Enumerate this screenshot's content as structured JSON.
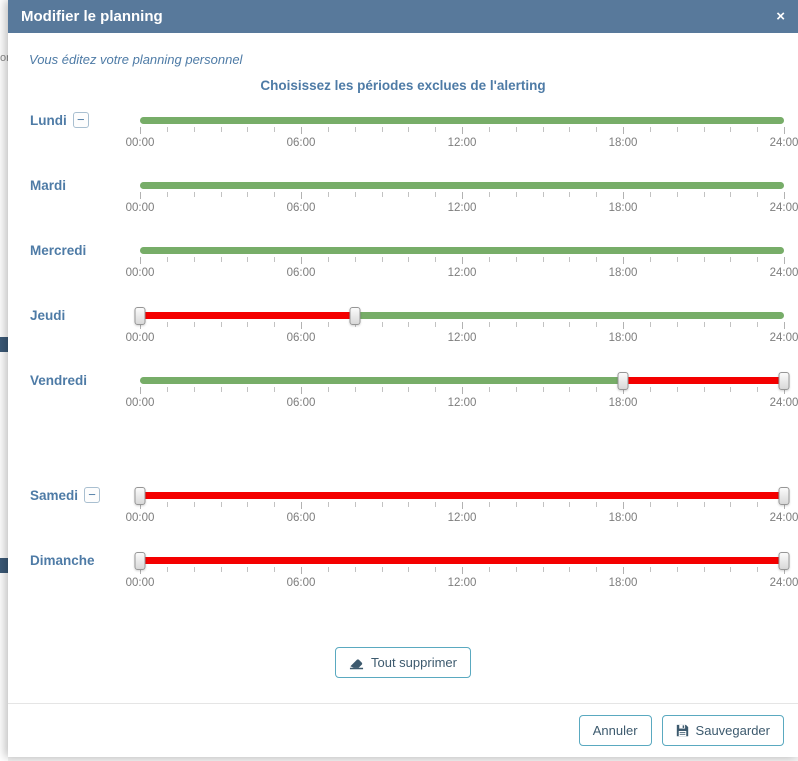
{
  "background": {
    "fragment_text": "or"
  },
  "modal": {
    "title": "Modifier le planning",
    "close": "×",
    "subtitle": "Vous éditez votre planning personnel",
    "heading": "Choisissez les périodes exclues de l'alerting"
  },
  "axis": {
    "min_hour": 0,
    "max_hour": 24,
    "minor_tick_every_hours": 1,
    "major_tick_every_hours": 6,
    "tick_labels": [
      "00:00",
      "06:00",
      "12:00",
      "18:00",
      "24:00"
    ]
  },
  "minus_button_label": "−",
  "days": [
    {
      "label": "Lundi",
      "minus_button": true,
      "segments": [
        {
          "from": 0,
          "to": 24,
          "state": "active"
        }
      ],
      "handles": []
    },
    {
      "label": "Mardi",
      "minus_button": false,
      "segments": [
        {
          "from": 0,
          "to": 24,
          "state": "active"
        }
      ],
      "handles": []
    },
    {
      "label": "Mercredi",
      "minus_button": false,
      "segments": [
        {
          "from": 0,
          "to": 24,
          "state": "active"
        }
      ],
      "handles": []
    },
    {
      "label": "Jeudi",
      "minus_button": false,
      "segments": [
        {
          "from": 0,
          "to": 8,
          "state": "excluded"
        },
        {
          "from": 8,
          "to": 24,
          "state": "active"
        }
      ],
      "handles": [
        0,
        8
      ]
    },
    {
      "label": "Vendredi",
      "minus_button": false,
      "extra_gap_after": true,
      "segments": [
        {
          "from": 0,
          "to": 18,
          "state": "active"
        },
        {
          "from": 18,
          "to": 24,
          "state": "excluded"
        }
      ],
      "handles": [
        18,
        24
      ]
    },
    {
      "label": "Samedi",
      "minus_button": true,
      "segments": [
        {
          "from": 0,
          "to": 24,
          "state": "excluded"
        }
      ],
      "handles": [
        0,
        24
      ]
    },
    {
      "label": "Dimanche",
      "minus_button": false,
      "segments": [
        {
          "from": 0,
          "to": 24,
          "state": "excluded"
        }
      ],
      "handles": [
        0,
        24
      ]
    }
  ],
  "buttons": {
    "clear_all": "Tout supprimer",
    "cancel": "Annuler",
    "save": "Sauvegarder"
  },
  "colors": {
    "header_bg": "#58799b",
    "accent_blue": "#4e7ba6",
    "included_green": "#77ad68",
    "excluded_red": "#f40000",
    "button_border": "#5aa9c0",
    "button_text": "#3d5a6e"
  }
}
